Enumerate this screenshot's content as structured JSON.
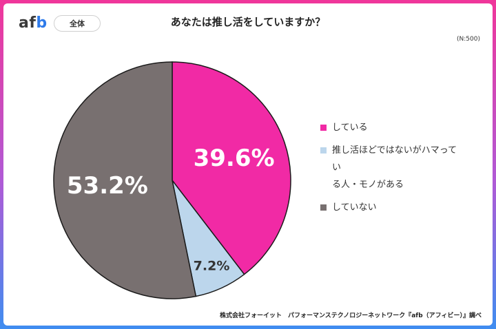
{
  "header": {
    "logo_prefix": "af",
    "logo_suffix": "b",
    "filter_label": "全体",
    "title": "あなたは推し活をしていますか？",
    "sample_size": "(N:500)"
  },
  "chart_data": {
    "type": "pie",
    "title": "あなたは推し活をしていますか？",
    "categories": [
      "している",
      "推し活ほどではないがハマっている人・モノがある",
      "していない"
    ],
    "values": [
      39.6,
      7.2,
      53.2
    ],
    "value_labels": [
      "39.6%",
      "7.2%",
      "53.2%"
    ],
    "legend_labels": [
      "している",
      "推し活ほどではないがハマってい\nる人・モノがある",
      "していない"
    ],
    "colors": [
      "#f12aa5",
      "#bcd6ec",
      "#787070"
    ],
    "legend_position": "right"
  },
  "footer": {
    "credit": "株式会社フォーイット　パフォーマンステクノロジーネットワーク『afb（アフィビー）』調べ"
  }
}
